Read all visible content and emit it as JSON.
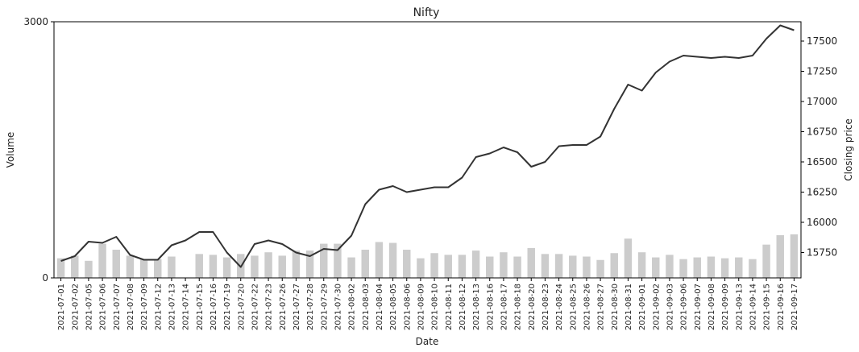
{
  "chart_data": {
    "type": "bar+line",
    "title": "Nifty",
    "xlabel": "Date",
    "ylabel_left": "Volume",
    "ylabel_right": "Closing price",
    "ylim_left": [
      0,
      3000
    ],
    "ylim_right": [
      15540,
      17660
    ],
    "left_ticks": [
      0,
      3000
    ],
    "right_ticks": [
      15750,
      16000,
      16250,
      16500,
      16750,
      17000,
      17250,
      17500
    ],
    "grid": false,
    "bar_color": "#cccccc",
    "line_color": "#333333",
    "categories": [
      "2021-07-01",
      "2021-07-02",
      "2021-07-05",
      "2021-07-06",
      "2021-07-07",
      "2021-07-08",
      "2021-07-09",
      "2021-07-12",
      "2021-07-13",
      "2021-07-14",
      "2021-07-15",
      "2021-07-16",
      "2021-07-19",
      "2021-07-20",
      "2021-07-22",
      "2021-07-23",
      "2021-07-26",
      "2021-07-27",
      "2021-07-28",
      "2021-07-29",
      "2021-07-30",
      "2021-08-02",
      "2021-08-03",
      "2021-08-04",
      "2021-08-05",
      "2021-08-06",
      "2021-08-09",
      "2021-08-10",
      "2021-08-11",
      "2021-08-12",
      "2021-08-13",
      "2021-08-16",
      "2021-08-17",
      "2021-08-18",
      "2021-08-20",
      "2021-08-23",
      "2021-08-24",
      "2021-08-25",
      "2021-08-26",
      "2021-08-27",
      "2021-08-30",
      "2021-08-31",
      "2021-09-01",
      "2021-09-02",
      "2021-09-03",
      "2021-09-06",
      "2021-09-07",
      "2021-09-08",
      "2021-09-09",
      "2021-09-13",
      "2021-09-14",
      "2021-09-15",
      "2021-09-16",
      "2021-09-17"
    ],
    "series": [
      {
        "type": "bar",
        "axis": "left",
        "values": [
          230,
          260,
          200,
          400,
          330,
          260,
          220,
          220,
          250,
          0,
          280,
          270,
          240,
          280,
          260,
          300,
          260,
          320,
          320,
          400,
          400,
          240,
          330,
          420,
          410,
          330,
          230,
          290,
          270,
          270,
          320,
          250,
          300,
          250,
          350,
          280,
          280,
          260,
          250,
          210,
          290,
          460,
          300,
          240,
          270,
          220,
          240,
          250,
          230,
          240,
          220,
          390,
          500,
          510
        ]
      },
      {
        "type": "line",
        "axis": "right",
        "values": [
          15680,
          15720,
          15840,
          15830,
          15880,
          15730,
          15690,
          15690,
          15810,
          15850,
          15920,
          15920,
          15750,
          15630,
          15820,
          15850,
          15820,
          15750,
          15720,
          15780,
          15770,
          15890,
          16150,
          16270,
          16300,
          16250,
          16270,
          16290,
          16290,
          16370,
          16540,
          16570,
          16620,
          16580,
          16460,
          16500,
          16630,
          16640,
          16640,
          16710,
          16940,
          17140,
          17090,
          17240,
          17330,
          17380,
          17370,
          17360,
          17370,
          17360,
          17380,
          17520,
          17630,
          17590
        ]
      }
    ]
  }
}
